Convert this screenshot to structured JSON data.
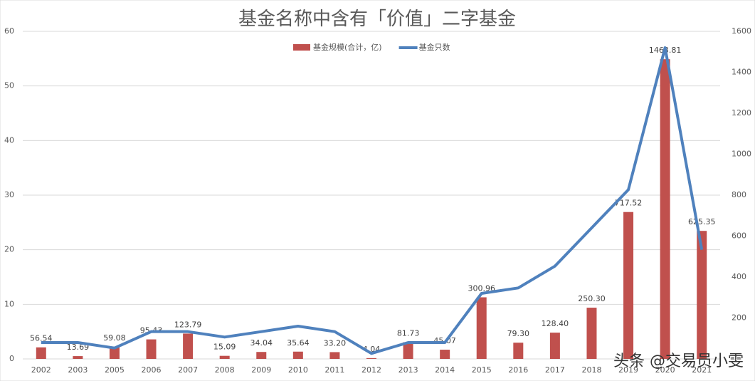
{
  "chart_data": {
    "type": "bar-line",
    "title": "基金名称中含有「价值」二字基金",
    "categories": [
      "2002",
      "2003",
      "2005",
      "2006",
      "2007",
      "2008",
      "2009",
      "2010",
      "2011",
      "2012",
      "2013",
      "2014",
      "2015",
      "2016",
      "2017",
      "2018",
      "2019",
      "2020",
      "2021"
    ],
    "series": [
      {
        "name": "基金规模(合计，亿)",
        "type": "bar",
        "axis": "y2",
        "color": "#c0504d",
        "values": [
          56.54,
          13.69,
          59.08,
          95.43,
          123.79,
          15.09,
          34.04,
          35.64,
          33.2,
          4.04,
          81.73,
          45.07,
          300.96,
          79.3,
          128.4,
          250.3,
          717.52,
          1463.81,
          625.35
        ],
        "value_labels": [
          "56.54",
          "13.69",
          "59.08",
          "95.43",
          "123.79",
          "15.09",
          "34.04",
          "35.64",
          "33.20",
          "4.04",
          "81.73",
          "45.07",
          "300.96",
          "79.30",
          "128.40",
          "250.30",
          "717.52",
          "1463.81",
          "625.35"
        ]
      },
      {
        "name": "基金只数",
        "type": "line",
        "color": "#4f81bd",
        "values": [
          3,
          3,
          2,
          5,
          5,
          4,
          5,
          6,
          5,
          1,
          3,
          3,
          12,
          13,
          17,
          24,
          31,
          57,
          20
        ]
      }
    ],
    "ylim": [
      0,
      60
    ],
    "yticks": [
      0,
      10,
      20,
      30,
      40,
      50,
      60
    ],
    "y2lim": [
      0,
      1600
    ],
    "y2ticks": [
      200,
      400,
      600,
      800,
      1000,
      1200,
      1400,
      1600
    ],
    "grid": true,
    "annotation": "头条 @交易员小雯"
  }
}
